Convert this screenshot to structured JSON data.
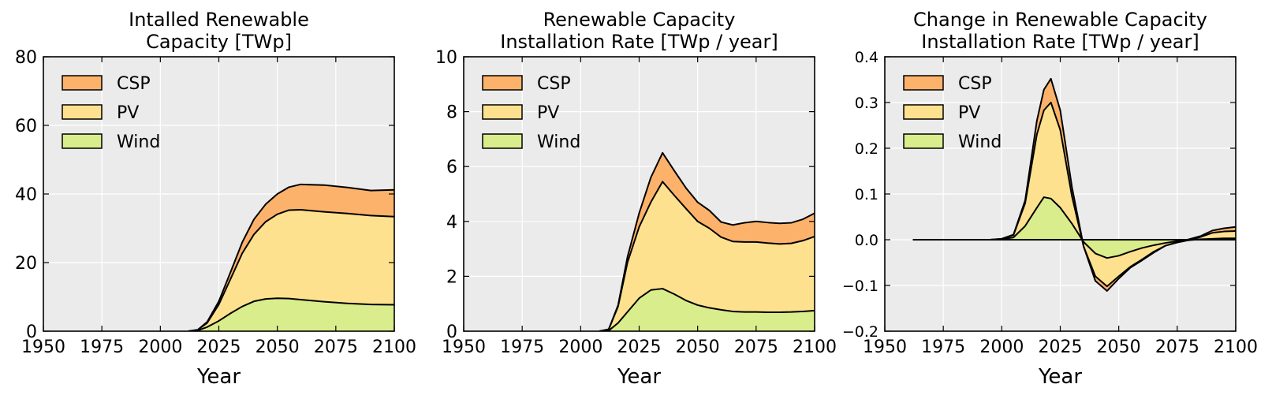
{
  "colors": {
    "background": "#ebebeb",
    "grid": "#ffffff",
    "csp": "#fdb26b",
    "pv": "#fde18f",
    "wind": "#d9ed8c",
    "line": "#000000"
  },
  "chart_data": [
    {
      "type": "area",
      "stacked": true,
      "title": "Intalled Renewable\nCapacity [TWp]",
      "xlabel": "Year",
      "ylabel": "",
      "xlim": [
        1950,
        2100
      ],
      "ylim": [
        0,
        80
      ],
      "xticks": [
        1950,
        1975,
        2000,
        2025,
        2050,
        2075,
        2100
      ],
      "yticks": [
        0,
        20,
        40,
        60,
        80
      ],
      "ytick_labels": [
        "0",
        "20",
        "40",
        "60",
        "80"
      ],
      "grid": true,
      "legend_position": "top-left",
      "x": [
        2012,
        2016,
        2020,
        2025,
        2030,
        2035,
        2040,
        2045,
        2050,
        2055,
        2060,
        2070,
        2080,
        2090,
        2100
      ],
      "series": [
        {
          "name": "Wind",
          "color_key": "wind",
          "values": [
            0,
            0.2,
            1.2,
            3.0,
            5.2,
            7.2,
            8.7,
            9.4,
            9.6,
            9.5,
            9.2,
            8.6,
            8.1,
            7.8,
            7.7
          ]
        },
        {
          "name": "PV",
          "color_key": "pv",
          "values": [
            0,
            0.2,
            1.2,
            4.8,
            10.0,
            15.5,
            19.5,
            22.5,
            24.5,
            25.8,
            26.2,
            26.2,
            26.2,
            25.9,
            25.7
          ]
        },
        {
          "name": "CSP",
          "color_key": "csp",
          "values": [
            0,
            0,
            0.3,
            0.9,
            2.0,
            3.2,
            4.4,
            5.1,
            5.9,
            6.7,
            7.4,
            7.8,
            7.6,
            7.3,
            7.8
          ]
        }
      ]
    },
    {
      "type": "area",
      "stacked": true,
      "title": "Renewable Capacity\nInstallation Rate [TWp / year]",
      "xlabel": "Year",
      "ylabel": "",
      "xlim": [
        1950,
        2100
      ],
      "ylim": [
        0,
        10
      ],
      "xticks": [
        1950,
        1975,
        2000,
        2025,
        2050,
        2075,
        2100
      ],
      "yticks": [
        0,
        2,
        4,
        6,
        8,
        10
      ],
      "ytick_labels": [
        "0",
        "2",
        "4",
        "6",
        "8",
        "10"
      ],
      "grid": true,
      "legend_position": "top-left",
      "x": [
        2008,
        2012,
        2016,
        2020,
        2025,
        2030,
        2035,
        2040,
        2045,
        2050,
        2055,
        2060,
        2065,
        2070,
        2075,
        2080,
        2085,
        2090,
        2095,
        2100
      ],
      "series": [
        {
          "name": "Wind",
          "color_key": "wind",
          "values": [
            0,
            0.02,
            0.3,
            0.7,
            1.2,
            1.5,
            1.55,
            1.35,
            1.12,
            0.95,
            0.85,
            0.78,
            0.72,
            0.7,
            0.7,
            0.69,
            0.69,
            0.7,
            0.72,
            0.75
          ]
        },
        {
          "name": "PV",
          "color_key": "pv",
          "values": [
            0,
            0.05,
            0.6,
            1.8,
            2.6,
            3.2,
            3.9,
            3.6,
            3.35,
            3.05,
            2.9,
            2.65,
            2.55,
            2.55,
            2.55,
            2.52,
            2.49,
            2.5,
            2.58,
            2.7
          ]
        },
        {
          "name": "CSP",
          "color_key": "csp",
          "values": [
            0,
            0,
            0.05,
            0.2,
            0.5,
            0.9,
            1.05,
            0.9,
            0.75,
            0.7,
            0.65,
            0.55,
            0.6,
            0.7,
            0.75,
            0.75,
            0.75,
            0.75,
            0.78,
            0.85
          ]
        }
      ]
    },
    {
      "type": "area",
      "stacked": true,
      "title": "Change in Renewable Capacity\nInstallation Rate [TWp / year]",
      "xlabel": "Year",
      "ylabel": "",
      "xlim": [
        1950,
        2100
      ],
      "ylim": [
        -0.2,
        0.4
      ],
      "xticks": [
        1950,
        1975,
        2000,
        2025,
        2050,
        2075,
        2100
      ],
      "yticks": [
        -0.2,
        -0.1,
        0.0,
        0.1,
        0.2,
        0.3,
        0.4
      ],
      "ytick_labels": [
        "−0.2",
        "−0.1",
        "0.0",
        "0.1",
        "0.2",
        "0.3",
        "0.4"
      ],
      "grid": true,
      "legend_position": "top-left",
      "x": [
        1962,
        1995,
        2000,
        2005,
        2010,
        2015,
        2018,
        2021,
        2025,
        2030,
        2035,
        2040,
        2045,
        2050,
        2055,
        2060,
        2065,
        2070,
        2075,
        2080,
        2085,
        2090,
        2095,
        2100
      ],
      "series": [
        {
          "name": "Wind",
          "color_key": "wind",
          "values": [
            0,
            0,
            0.001,
            0.005,
            0.03,
            0.07,
            0.093,
            0.09,
            0.07,
            0.035,
            -0.005,
            -0.03,
            -0.04,
            -0.035,
            -0.026,
            -0.018,
            -0.012,
            -0.007,
            -0.003,
            -0.001,
            0.001,
            0.002,
            0.003,
            0.003
          ]
        },
        {
          "name": "PV",
          "color_key": "pv",
          "values": [
            0,
            0,
            0.001,
            0.005,
            0.05,
            0.16,
            0.19,
            0.21,
            0.17,
            0.06,
            -0.01,
            -0.05,
            -0.062,
            -0.045,
            -0.033,
            -0.025,
            -0.014,
            -0.006,
            -0.003,
            0.0,
            0.005,
            0.013,
            0.015,
            0.016
          ]
        },
        {
          "name": "CSP",
          "color_key": "csp",
          "values": [
            0,
            0,
            0,
            0.001,
            0.006,
            0.03,
            0.045,
            0.052,
            0.043,
            0.02,
            0.0,
            -0.01,
            -0.01,
            -0.005,
            -0.002,
            -0.002,
            -0.002,
            0.0,
            0.001,
            0.002,
            0.002,
            0.005,
            0.007,
            0.009
          ]
        }
      ]
    }
  ]
}
